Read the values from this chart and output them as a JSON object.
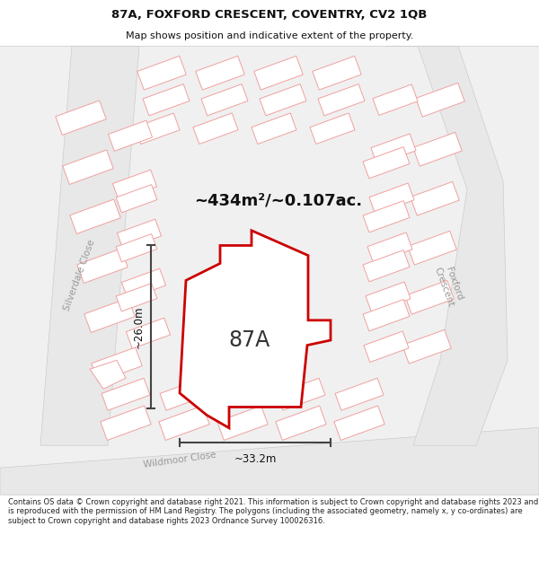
{
  "title_line1": "87A, FOXFORD CRESCENT, COVENTRY, CV2 1QB",
  "title_line2": "Map shows position and indicative extent of the property.",
  "area_text": "~434m²/~0.107ac.",
  "label_87a": "87A",
  "dim_vertical": "~26.0m",
  "dim_horizontal": "~33.2m",
  "footer_text": "Contains OS data © Crown copyright and database right 2021. This information is subject to Crown copyright and database rights 2023 and is reproduced with the permission of HM Land Registry. The polygons (including the associated geometry, namely x, y co-ordinates) are subject to Crown copyright and database rights 2023 Ordnance Survey 100026316.",
  "bg_color": "#f0f0f0",
  "plot_outline_color": "#cc0000",
  "plot_fill_color": "#ffffff",
  "parcel_ec": "#f0a0a0",
  "parcel_fc": "#f7f7f7",
  "road_fc": "#e8e8e8",
  "road_ec": "#cccccc",
  "white_fc": "#ffffff",
  "dim_line_color": "#444444",
  "title_color": "#111111",
  "footer_color": "#222222",
  "street_label_color": "#999999"
}
